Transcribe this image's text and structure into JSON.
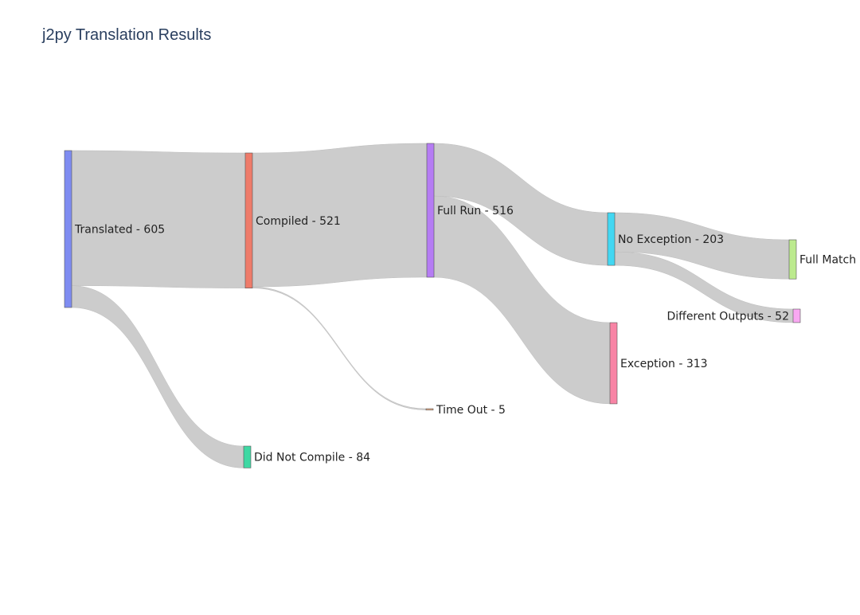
{
  "chart_data": {
    "type": "sankey",
    "title": "j2py Translation Results",
    "nodes": [
      {
        "id": "translated",
        "label": "Translated - 605",
        "color": "#7f8cf1"
      },
      {
        "id": "compiled",
        "label": "Compiled - 521",
        "color": "#ee7b6a"
      },
      {
        "id": "did_not_compile",
        "label": "Did Not Compile - 84",
        "color": "#3fd8a3"
      },
      {
        "id": "full_run",
        "label": "Full Run - 516",
        "color": "#b57cf3"
      },
      {
        "id": "time_out",
        "label": "Time Out - 5",
        "color": "#f2b38a"
      },
      {
        "id": "no_exception",
        "label": "No Exception - 203",
        "color": "#42d7f2"
      },
      {
        "id": "exception",
        "label": "Exception - 313",
        "color": "#f884a5"
      },
      {
        "id": "full_match",
        "label": "Full Match",
        "color": "#bcea8e"
      },
      {
        "id": "different_outputs",
        "label": "Different Outputs - 52",
        "color": "#f9a8f2"
      }
    ],
    "links": [
      {
        "source": "translated",
        "target": "compiled",
        "value": 521
      },
      {
        "source": "translated",
        "target": "did_not_compile",
        "value": 84
      },
      {
        "source": "compiled",
        "target": "full_run",
        "value": 516
      },
      {
        "source": "compiled",
        "target": "time_out",
        "value": 5
      },
      {
        "source": "full_run",
        "target": "no_exception",
        "value": 203
      },
      {
        "source": "full_run",
        "target": "exception",
        "value": 313
      },
      {
        "source": "no_exception",
        "target": "full_match",
        "value": 151
      },
      {
        "source": "no_exception",
        "target": "different_outputs",
        "value": 52
      }
    ]
  }
}
